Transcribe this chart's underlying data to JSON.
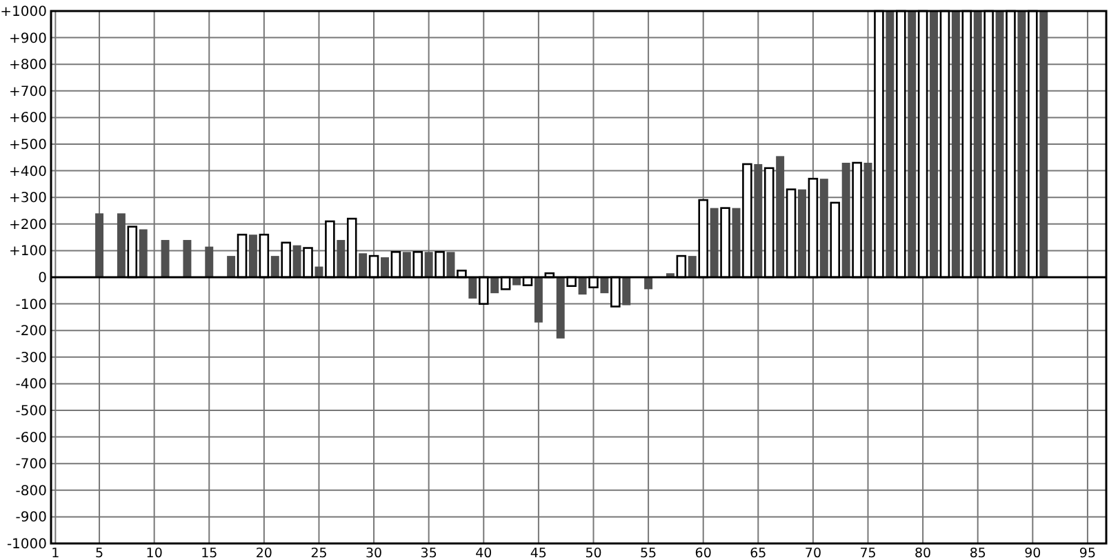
{
  "chart_data": {
    "type": "bar",
    "xlim": [
      0.6,
      96.7
    ],
    "xticks": [
      1,
      5,
      10,
      15,
      20,
      25,
      30,
      35,
      40,
      45,
      50,
      55,
      60,
      65,
      70,
      75,
      80,
      85,
      90,
      95
    ],
    "ylim": [
      -1000,
      1000
    ],
    "yticks": [
      {
        "value": -1000,
        "label": "-1000"
      },
      {
        "value": -900,
        "label": "-900"
      },
      {
        "value": -800,
        "label": "-800"
      },
      {
        "value": -700,
        "label": "-700"
      },
      {
        "value": -600,
        "label": "-600"
      },
      {
        "value": -500,
        "label": "-500"
      },
      {
        "value": -400,
        "label": "-400"
      },
      {
        "value": -300,
        "label": "-300"
      },
      {
        "value": -200,
        "label": "-200"
      },
      {
        "value": -100,
        "label": "-100"
      },
      0,
      {
        "value": 100,
        "label": "+100"
      },
      {
        "value": 200,
        "label": "+200"
      },
      {
        "value": 300,
        "label": "+300"
      },
      {
        "value": 400,
        "label": "+400"
      },
      {
        "value": 500,
        "label": "+500"
      },
      {
        "value": 600,
        "label": "+600"
      },
      {
        "value": 700,
        "label": "+700"
      },
      {
        "value": 800,
        "label": "+800"
      },
      {
        "value": 900,
        "label": "+900"
      },
      {
        "value": 1000,
        "label": "+1000"
      }
    ],
    "grid": true,
    "series": [
      {
        "color": "#505050",
        "x": [
          5,
          7,
          9,
          11,
          13,
          15,
          17,
          19,
          21,
          23,
          25,
          27,
          29,
          31,
          33,
          35,
          37,
          39,
          41,
          43,
          45,
          47,
          49,
          51,
          53,
          55,
          57,
          59,
          61,
          63,
          65,
          67,
          69,
          71,
          73,
          75,
          77,
          79,
          81,
          83,
          85,
          87,
          89,
          91
        ],
        "values": [
          240,
          240,
          180,
          140,
          140,
          115,
          80,
          160,
          80,
          120,
          40,
          140,
          90,
          75,
          95,
          95,
          95,
          -80,
          -60,
          -30,
          -170,
          -230,
          -65,
          -60,
          -105,
          -45,
          15,
          80,
          260,
          260,
          425,
          455,
          330,
          370,
          430,
          430,
          1000,
          1000,
          1000,
          1000,
          1000,
          1000,
          1000,
          1000
        ]
      },
      {
        "color": "#ffffff",
        "x": [
          8,
          18,
          20,
          22,
          24,
          26,
          28,
          30,
          32,
          34,
          36,
          38,
          40,
          42,
          44,
          46,
          48,
          50,
          52,
          58,
          60,
          62,
          64,
          66,
          68,
          70,
          72,
          74,
          76,
          78,
          80,
          82,
          84,
          86,
          88,
          90
        ],
        "values": [
          190,
          160,
          160,
          130,
          110,
          210,
          220,
          80,
          95,
          95,
          95,
          25,
          -100,
          -45,
          -30,
          15,
          -33,
          -38,
          -110,
          80,
          290,
          260,
          425,
          410,
          330,
          370,
          280,
          430,
          1000,
          1000,
          1000,
          1000,
          1000,
          1000,
          1000,
          1000
        ]
      }
    ]
  }
}
